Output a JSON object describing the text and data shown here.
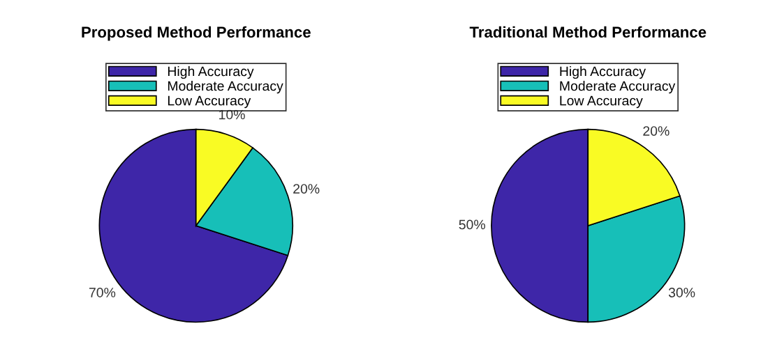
{
  "chart_data": [
    {
      "type": "pie",
      "title": "Proposed Method Performance",
      "categories": [
        "High Accuracy",
        "Moderate Accuracy",
        "Low Accuracy"
      ],
      "values": [
        70,
        20,
        10
      ],
      "colors": [
        "#3e26a8",
        "#17bfb8",
        "#f9fb24"
      ],
      "value_labels": [
        "70%",
        "20%",
        "10%"
      ],
      "legend": "top"
    },
    {
      "type": "pie",
      "title": "Traditional Method Performance",
      "categories": [
        "High Accuracy",
        "Moderate Accuracy",
        "Low Accuracy"
      ],
      "values": [
        50,
        30,
        20
      ],
      "colors": [
        "#3e26a8",
        "#17bfb8",
        "#f9fb24"
      ],
      "value_labels": [
        "50%",
        "30%",
        "20%"
      ],
      "legend": "top"
    }
  ]
}
